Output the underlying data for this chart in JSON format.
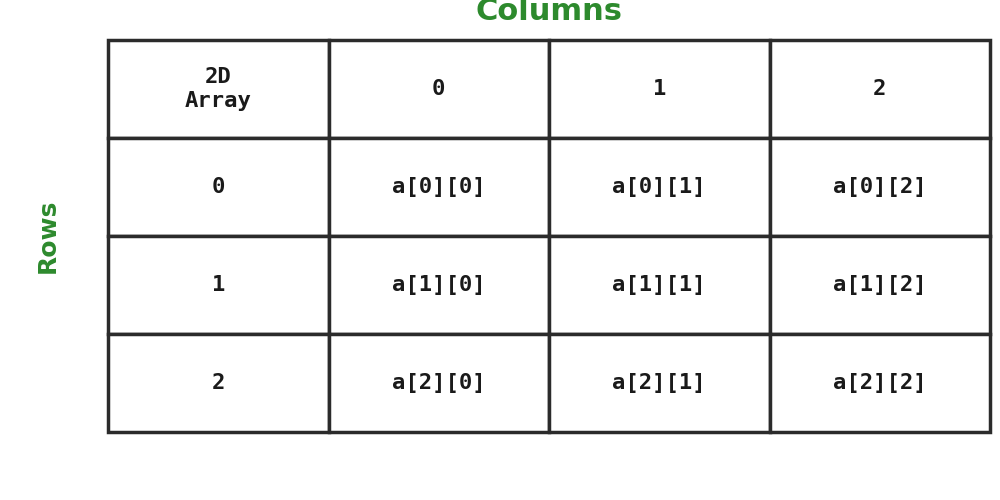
{
  "title_top": "Columns",
  "title_left": "Rows",
  "title_color": "#2d8a2d",
  "background_color": "#ffffff",
  "table_data": [
    [
      "2D\nArray",
      "0",
      "1",
      "2"
    ],
    [
      "0",
      "a[0][0]",
      "a[0][1]",
      "a[0][2]"
    ],
    [
      "1",
      "a[1][0]",
      "a[1][1]",
      "a[1][2]"
    ],
    [
      "2",
      "a[2][0]",
      "a[2][1]",
      "a[2][2]"
    ]
  ],
  "cell_text_color": "#1a1a1a",
  "cell_text_fontsize": 16,
  "title_fontsize": 22,
  "rows_label_fontsize": 18,
  "line_color": "#2b2b2b",
  "line_width": 2.5
}
